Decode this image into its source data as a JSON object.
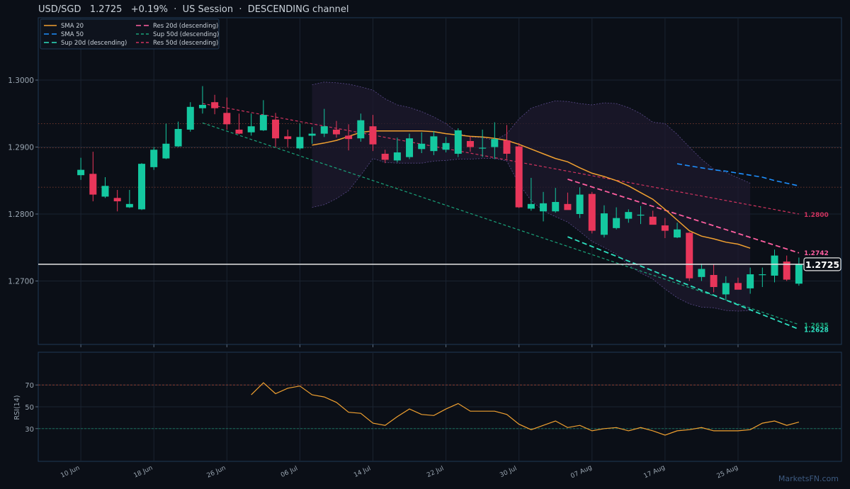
{
  "header": {
    "title": "USD/SGD   1.2725   +0.19%  ·  US Session  ·  DESCENDING channel"
  },
  "watermark": "MarketsFN.com",
  "legend": {
    "items": [
      {
        "label": "SMA 20",
        "color": "#f0a030",
        "dash": "solid"
      },
      {
        "label": "Res 20d (descending)",
        "color": "#ff5fa0",
        "dash": "long"
      },
      {
        "label": "SMA 50",
        "color": "#1e90ff",
        "dash": "long"
      },
      {
        "label": "Sup 50d (descending)",
        "color": "#1aa37a",
        "dash": "short"
      },
      {
        "label": "Sup 20d (descending)",
        "color": "#2de0c0",
        "dash": "long"
      },
      {
        "label": "Res 50d (descending)",
        "color": "#d0335f",
        "dash": "short"
      }
    ]
  },
  "colors": {
    "up": "#14c8a0",
    "down": "#e8365a",
    "background": "#0b0f17",
    "grid": "#1a2330",
    "axis": "#1f3a55"
  },
  "chart_data": [
    {
      "type": "candlestick",
      "ylim": [
        1.2605,
        1.3
      ],
      "yticks": [
        "1.2700",
        "1.2800",
        "1.2900",
        "1.3000"
      ],
      "x_tick_labels": [
        "10 Jun",
        "18 Jun",
        "26 Jun",
        "06 Jul",
        "14 Jul",
        "22 Jul",
        "30 Jul",
        "07 Aug",
        "17 Aug",
        "25 Aug"
      ],
      "x_tick_index": [
        0,
        6,
        12,
        18,
        24,
        30,
        36,
        42,
        48,
        54
      ],
      "index_range": [
        -3.5,
        62.5
      ],
      "ohlc": [
        [
          1.2858,
          1.2884,
          1.2851,
          1.2866
        ],
        [
          1.286,
          1.2893,
          1.2819,
          1.2829
        ],
        [
          1.2826,
          1.2855,
          1.2824,
          1.2842
        ],
        [
          1.2824,
          1.2836,
          1.2804,
          1.2819
        ],
        [
          1.281,
          1.2836,
          1.2809,
          1.2815
        ],
        [
          1.2807,
          1.2876,
          1.2806,
          1.2875
        ],
        [
          1.287,
          1.29,
          1.2866,
          1.2896
        ],
        [
          1.2883,
          1.2935,
          1.2882,
          1.2905
        ],
        [
          1.2901,
          1.2938,
          1.29,
          1.2927
        ],
        [
          1.2926,
          1.2967,
          1.2923,
          1.296
        ],
        [
          1.2958,
          1.2991,
          1.295,
          1.2963
        ],
        [
          1.2967,
          1.2978,
          1.2949,
          1.2958
        ],
        [
          1.2951,
          1.2974,
          1.2926,
          1.2934
        ],
        [
          1.2926,
          1.295,
          1.2919,
          1.292
        ],
        [
          1.2922,
          1.295,
          1.2917,
          1.2931
        ],
        [
          1.2925,
          1.297,
          1.2924,
          1.2948
        ],
        [
          1.2941,
          1.2951,
          1.29,
          1.2913
        ],
        [
          1.2916,
          1.2926,
          1.29,
          1.2912
        ],
        [
          1.2898,
          1.2935,
          1.2896,
          1.2915
        ],
        [
          1.2917,
          1.293,
          1.2905,
          1.292
        ],
        [
          1.292,
          1.2957,
          1.2915,
          1.2931
        ],
        [
          1.2926,
          1.2939,
          1.2914,
          1.2919
        ],
        [
          1.2917,
          1.2934,
          1.2895,
          1.2912
        ],
        [
          1.2913,
          1.295,
          1.2908,
          1.294
        ],
        [
          1.2931,
          1.2948,
          1.2894,
          1.2904
        ],
        [
          1.289,
          1.2896,
          1.2876,
          1.2881
        ],
        [
          1.288,
          1.2914,
          1.2877,
          1.2892
        ],
        [
          1.2885,
          1.292,
          1.2882,
          1.2913
        ],
        [
          1.2897,
          1.2922,
          1.2891,
          1.2905
        ],
        [
          1.2894,
          1.2924,
          1.2888,
          1.2916
        ],
        [
          1.2896,
          1.2915,
          1.2892,
          1.2906
        ],
        [
          1.289,
          1.2928,
          1.2885,
          1.2925
        ],
        [
          1.2909,
          1.2916,
          1.2893,
          1.29
        ],
        [
          1.2898,
          1.2926,
          1.2885,
          1.2899
        ],
        [
          1.29,
          1.2937,
          1.2882,
          1.2912
        ],
        [
          1.291,
          1.2933,
          1.2882,
          1.289
        ],
        [
          1.2901,
          1.2906,
          1.2809,
          1.281
        ],
        [
          1.2808,
          1.2854,
          1.2805,
          1.2815
        ],
        [
          1.2804,
          1.2833,
          1.2789,
          1.2816
        ],
        [
          1.2804,
          1.2839,
          1.2802,
          1.2818
        ],
        [
          1.2815,
          1.2832,
          1.2809,
          1.2806
        ],
        [
          1.28,
          1.284,
          1.2794,
          1.2829
        ],
        [
          1.283,
          1.2833,
          1.2771,
          1.2775
        ],
        [
          1.2769,
          1.2813,
          1.2765,
          1.2801
        ],
        [
          1.2779,
          1.281,
          1.2777,
          1.2794
        ],
        [
          1.2793,
          1.2807,
          1.2787,
          1.2803
        ],
        [
          1.2799,
          1.2812,
          1.2785,
          1.2799
        ],
        [
          1.2796,
          1.2805,
          1.2785,
          1.2784
        ],
        [
          1.2783,
          1.2794,
          1.2764,
          1.2775
        ],
        [
          1.2765,
          1.2787,
          1.2764,
          1.2777
        ],
        [
          1.2772,
          1.2773,
          1.27,
          1.2704
        ],
        [
          1.2706,
          1.2726,
          1.27,
          1.2718
        ],
        [
          1.2709,
          1.2725,
          1.2683,
          1.2691
        ],
        [
          1.268,
          1.2707,
          1.2673,
          1.2697
        ],
        [
          1.2697,
          1.2705,
          1.2688,
          1.2687
        ],
        [
          1.2689,
          1.272,
          1.2681,
          1.271
        ],
        [
          1.271,
          1.272,
          1.2691,
          1.271
        ],
        [
          1.2708,
          1.2747,
          1.2698,
          1.2738
        ],
        [
          1.2729,
          1.2738,
          1.27,
          1.2702
        ],
        [
          1.2696,
          1.2735,
          1.2693,
          1.2725
        ]
      ],
      "sma20": {
        "start": 19,
        "values": [
          1.2903,
          1.2906,
          1.291,
          1.2916,
          1.2922,
          1.2924,
          1.2924,
          1.2924,
          1.2924,
          1.2924,
          1.2923,
          1.292,
          1.2918,
          1.2916,
          1.2915,
          1.2913,
          1.291,
          1.2904,
          1.2897,
          1.289,
          1.2883,
          1.2878,
          1.2869,
          1.2861,
          1.2856,
          1.285,
          1.2842,
          1.2832,
          1.2822,
          1.2807,
          1.2791,
          1.2775,
          1.2767,
          1.2763,
          1.2758,
          1.2755,
          1.2749
        ]
      },
      "sma50": {
        "start": 49,
        "values": [
          1.2875,
          1.2872,
          1.2869,
          1.2866,
          1.2864,
          1.2861,
          1.2858,
          1.2855,
          1.285,
          1.2846,
          1.2842
        ]
      },
      "bollinger": {
        "start": 19,
        "upper": [
          1.2993,
          1.2997,
          1.2996,
          1.2994,
          1.299,
          1.2985,
          1.2972,
          1.2963,
          1.2959,
          1.2953,
          1.2945,
          1.2935,
          1.2921,
          1.2915,
          1.2914,
          1.291,
          1.292,
          1.2942,
          1.2958,
          1.2964,
          1.2969,
          1.2968,
          1.2965,
          1.2963,
          1.2966,
          1.2965,
          1.2959,
          1.295,
          1.2937,
          1.2935,
          1.2919,
          1.29,
          1.2882,
          1.2867,
          1.2862,
          1.2854,
          1.2846
        ],
        "lower": [
          1.281,
          1.2814,
          1.2823,
          1.2835,
          1.2858,
          1.2883,
          1.2877,
          1.2876,
          1.2876,
          1.2876,
          1.2879,
          1.288,
          1.2882,
          1.2882,
          1.2883,
          1.2883,
          1.2879,
          1.2845,
          1.282,
          1.2805,
          1.2796,
          1.2788,
          1.2774,
          1.2759,
          1.275,
          1.274,
          1.2724,
          1.2712,
          1.2703,
          1.2688,
          1.2675,
          1.2666,
          1.2661,
          1.266,
          1.2656,
          1.2655,
          1.2656
        ]
      },
      "levels": [
        {
          "name": "Res 50d (descending)",
          "x0": 10,
          "y0": 1.2965,
          "x1": 59,
          "y1": 1.28,
          "color": "#d0335f",
          "label": "1.2800",
          "dash": "short"
        },
        {
          "name": "Res 20d (descending)",
          "x0": 40,
          "y0": 1.2852,
          "x1": 59,
          "y1": 1.2742,
          "color": "#ff5fa0",
          "label": "1.2742",
          "dash": "long"
        },
        {
          "name": "Sup 50d (descending)",
          "x0": 10,
          "y0": 1.2936,
          "x1": 59,
          "y1": 1.2635,
          "color": "#1aa37a",
          "label": "1.2635",
          "dash": "short"
        },
        {
          "name": "Sup 20d (descending)",
          "x0": 40,
          "y0": 1.2766,
          "x1": 59,
          "y1": 1.2628,
          "color": "#2de0c0",
          "label": "1.2628",
          "dash": "long"
        }
      ],
      "horizontal_dotted": [
        1.2935,
        1.2899,
        1.284
      ],
      "current_price": {
        "value": 1.2725,
        "label": "1.2725"
      }
    },
    {
      "type": "line",
      "ylabel": "RSI(14)",
      "ylim": [
        0,
        100
      ],
      "yticks": [
        "30",
        "50",
        "70"
      ],
      "ref_lines": [
        70,
        30
      ],
      "start": 14,
      "values": [
        61,
        72,
        62,
        67,
        69,
        61,
        59,
        54,
        45,
        44,
        35,
        33,
        41,
        48,
        43,
        42,
        48,
        53,
        46,
        46,
        46,
        43,
        34,
        29,
        33,
        37,
        31,
        33,
        28,
        30,
        31,
        28,
        31,
        28,
        24,
        28,
        29,
        31,
        28,
        28,
        28,
        29,
        35,
        37,
        33,
        36
      ]
    }
  ]
}
